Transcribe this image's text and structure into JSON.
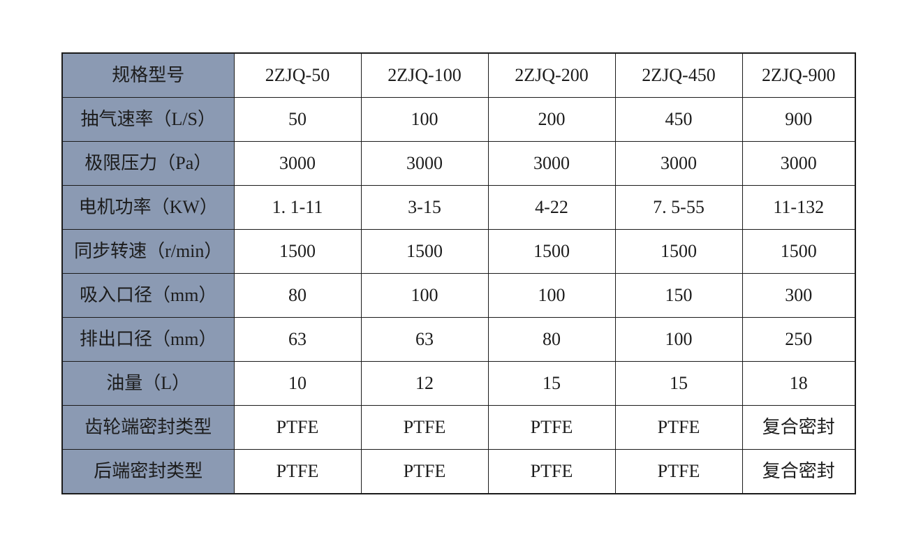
{
  "table": {
    "corner_label": "规格型号",
    "header_fill": "#8B9AB3",
    "border_color": "#1b1b1b",
    "text_color": "#1c1c1c",
    "columns": [
      "2ZJQ-50",
      "2ZJQ-100",
      "2ZJQ-200",
      "2ZJQ-450",
      "2ZJQ-900"
    ],
    "rows": [
      {
        "label": "抽气速率（L/S）",
        "values": [
          "50",
          "100",
          "200",
          "450",
          "900"
        ]
      },
      {
        "label": "极限压力（Pa）",
        "values": [
          "3000",
          "3000",
          "3000",
          "3000",
          "3000"
        ]
      },
      {
        "label": "电机功率（KW）",
        "values": [
          "1. 1-11",
          "3-15",
          "4-22",
          "7. 5-55",
          "11-132"
        ]
      },
      {
        "label": "同步转速（r/min）",
        "values": [
          "1500",
          "1500",
          "1500",
          "1500",
          "1500"
        ]
      },
      {
        "label": "吸入口径（mm）",
        "values": [
          "80",
          "100",
          "100",
          "150",
          "300"
        ]
      },
      {
        "label": "排出口径（mm）",
        "values": [
          "63",
          "63",
          "80",
          "100",
          "250"
        ]
      },
      {
        "label": "油量（L）",
        "values": [
          "10",
          "12",
          "15",
          "15",
          "18"
        ]
      },
      {
        "label": "齿轮端密封类型",
        "values": [
          "PTFE",
          "PTFE",
          "PTFE",
          "PTFE",
          "复合密封"
        ]
      },
      {
        "label": "后端密封类型",
        "values": [
          "PTFE",
          "PTFE",
          "PTFE",
          "PTFE",
          "复合密封"
        ]
      }
    ]
  }
}
